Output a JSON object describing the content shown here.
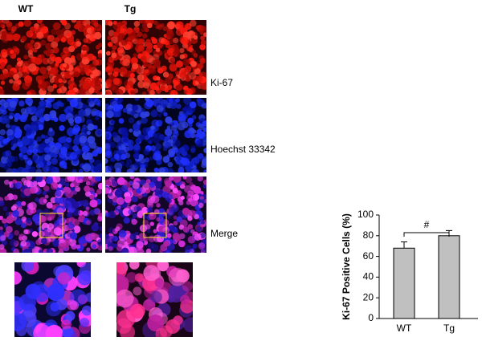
{
  "figure": {
    "column_labels": [
      "WT",
      "Tg"
    ],
    "row_labels": [
      "Ki-67",
      "Hoechst 33342",
      "Merge"
    ]
  },
  "chart_data": {
    "type": "bar",
    "categories": [
      "WT",
      "Tg"
    ],
    "values": [
      68,
      80
    ],
    "errors": [
      6,
      5
    ],
    "color": "#c0c0c0",
    "y_label": "Ki-67 Positive Cells (%)",
    "annotation": "#",
    "ylim": [
      0,
      100
    ],
    "yticks": [
      0,
      20,
      40,
      60,
      80,
      100
    ]
  }
}
